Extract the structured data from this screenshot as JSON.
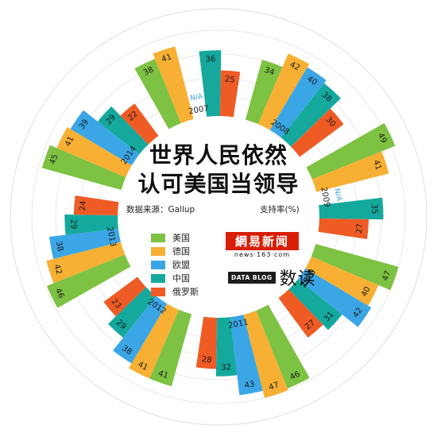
{
  "title": "世界人民依然认可美国当领导",
  "title_line1": "世界人民依然",
  "title_line2": "认可美国当领导",
  "source": "数据来源：Gallup",
  "unit_label": "支持率(%)",
  "logo_netease": {
    "mark": "網易新闻",
    "url_text": "news·163·com"
  },
  "logo_datablog": {
    "box": "DATA BLOG",
    "text": "数读"
  },
  "colors": {
    "美国": "#7dc242",
    "德国": "#f7b034",
    "欧盟": "#3ba6e6",
    "中国": "#14a99c",
    "俄罗斯": "#ef5b25"
  },
  "chart_data": {
    "type": "bar",
    "layout": "radial",
    "series": [
      {
        "name": "美国",
        "values": [
          38,
          34,
          49,
          47,
          46,
          41,
          46,
          45
        ]
      },
      {
        "name": "德国",
        "values": [
          41,
          42,
          41,
          40,
          47,
          41,
          42,
          41
        ]
      },
      {
        "name": "欧盟",
        "values": [
          null,
          40,
          null,
          42,
          43,
          38,
          38,
          39
        ]
      },
      {
        "name": "中国",
        "values": [
          36,
          38,
          35,
          31,
          32,
          29,
          29,
          29
        ]
      },
      {
        "name": "俄罗斯",
        "values": [
          25,
          30,
          27,
          27,
          28,
          23,
          24,
          22
        ]
      }
    ],
    "categories": [
      "2007",
      "2008",
      "2009",
      "2010",
      "2011",
      "2012",
      "2013",
      "2014"
    ],
    "missing_label": "N/A"
  }
}
